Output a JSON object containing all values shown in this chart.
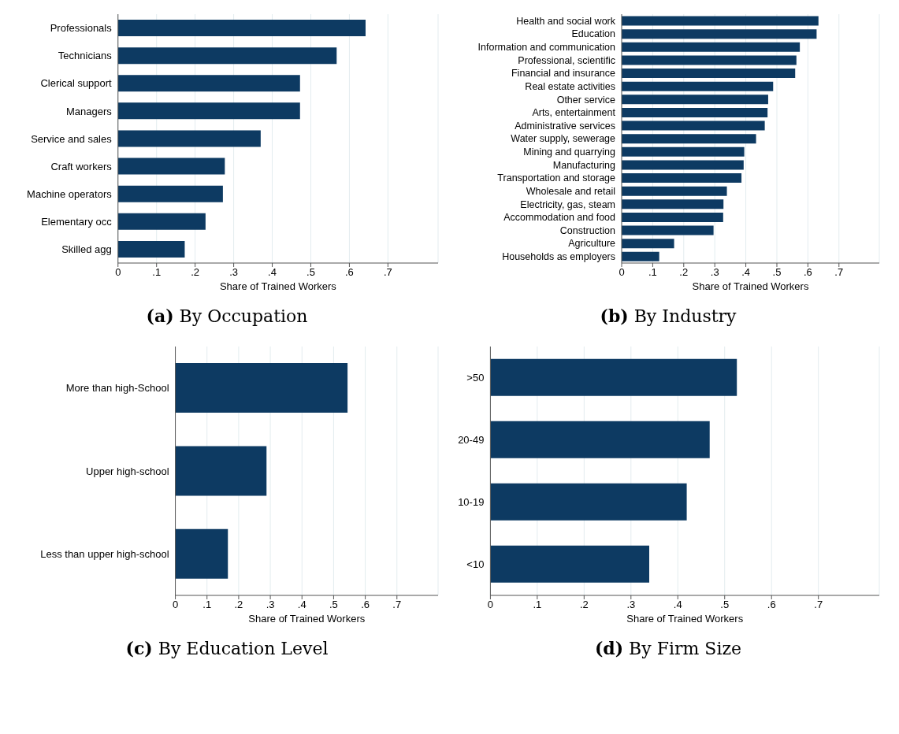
{
  "chart_data": [
    {
      "type": "bar",
      "orientation": "horizontal",
      "title": "(a) By Occupation",
      "xlabel": "Share of Trained Workers",
      "categories": [
        "Professionals",
        "Technicians",
        "Clerical support",
        "Managers",
        "Service and sales",
        "Craft workers",
        "Machine operators",
        "Elementary occ",
        "Skilled agg"
      ],
      "values": [
        0.642,
        0.567,
        0.472,
        0.472,
        0.37,
        0.277,
        0.272,
        0.227,
        0.173
      ],
      "color": "#0d3a62",
      "xlim": [
        0,
        0.83
      ],
      "xticks": [
        {
          "value": 0,
          "label": "0"
        },
        {
          "value": 0.1,
          "label": ".1"
        },
        {
          "value": 0.2,
          "label": ".2"
        },
        {
          "value": 0.3,
          "label": ".3"
        },
        {
          "value": 0.4,
          "label": ".4"
        },
        {
          "value": 0.5,
          "label": ".5"
        },
        {
          "value": 0.6,
          "label": ".6"
        },
        {
          "value": 0.7,
          "label": ".7"
        }
      ],
      "grid": "x"
    },
    {
      "type": "bar",
      "orientation": "horizontal",
      "title": "(b) By Industry",
      "xlabel": "Share of Trained Workers",
      "categories": [
        "Health and social work",
        "Education",
        "Information and communication",
        "Professional, scientific",
        "Financial and insurance",
        "Real estate activities",
        "Other service",
        "Arts, entertainment",
        "Administrative services",
        "Water supply, sewerage",
        "Mining and quarrying",
        "Manufacturing",
        "Transportation and storage",
        "Wholesale and retail",
        "Electricity, gas, steam",
        "Accommodation and food",
        "Construction",
        "Agriculture",
        "Households as employers"
      ],
      "values": [
        0.634,
        0.628,
        0.574,
        0.563,
        0.559,
        0.488,
        0.472,
        0.47,
        0.461,
        0.433,
        0.395,
        0.393,
        0.386,
        0.339,
        0.328,
        0.327,
        0.296,
        0.169,
        0.121
      ],
      "color": "#0d3a62",
      "xlim": [
        0,
        0.83
      ],
      "xticks": [
        {
          "value": 0,
          "label": "0"
        },
        {
          "value": 0.1,
          "label": ".1"
        },
        {
          "value": 0.2,
          "label": ".2"
        },
        {
          "value": 0.3,
          "label": ".3"
        },
        {
          "value": 0.4,
          "label": ".4"
        },
        {
          "value": 0.5,
          "label": ".5"
        },
        {
          "value": 0.6,
          "label": ".6"
        },
        {
          "value": 0.7,
          "label": ".7"
        }
      ],
      "grid": "x"
    },
    {
      "type": "bar",
      "orientation": "horizontal",
      "title": "(c) By Education Level",
      "xlabel": "Share of Trained Workers",
      "categories": [
        "More than high-School",
        "Upper high-school",
        "Less than upper high-school"
      ],
      "values": [
        0.544,
        0.288,
        0.166
      ],
      "color": "#0d3a62",
      "xlim": [
        0,
        0.83
      ],
      "xticks": [
        {
          "value": 0,
          "label": "0"
        },
        {
          "value": 0.1,
          "label": ".1"
        },
        {
          "value": 0.2,
          "label": ".2"
        },
        {
          "value": 0.3,
          "label": ".3"
        },
        {
          "value": 0.4,
          "label": ".4"
        },
        {
          "value": 0.5,
          "label": ".5"
        },
        {
          "value": 0.6,
          "label": ".6"
        },
        {
          "value": 0.7,
          "label": ".7"
        }
      ],
      "grid": "x"
    },
    {
      "type": "bar",
      "orientation": "horizontal",
      "title": "(d) By Firm Size",
      "xlabel": "Share of Trained Workers",
      "categories": [
        ">50",
        "20-49",
        "10-19",
        "<10"
      ],
      "values": [
        0.526,
        0.468,
        0.419,
        0.339
      ],
      "color": "#0d3a62",
      "xlim": [
        0,
        0.83
      ],
      "xticks": [
        {
          "value": 0,
          "label": "0"
        },
        {
          "value": 0.1,
          "label": ".1"
        },
        {
          "value": 0.2,
          "label": ".2"
        },
        {
          "value": 0.3,
          "label": ".3"
        },
        {
          "value": 0.4,
          "label": ".4"
        },
        {
          "value": 0.5,
          "label": ".5"
        },
        {
          "value": 0.6,
          "label": ".6"
        },
        {
          "value": 0.7,
          "label": ".7"
        }
      ],
      "grid": "x"
    }
  ]
}
